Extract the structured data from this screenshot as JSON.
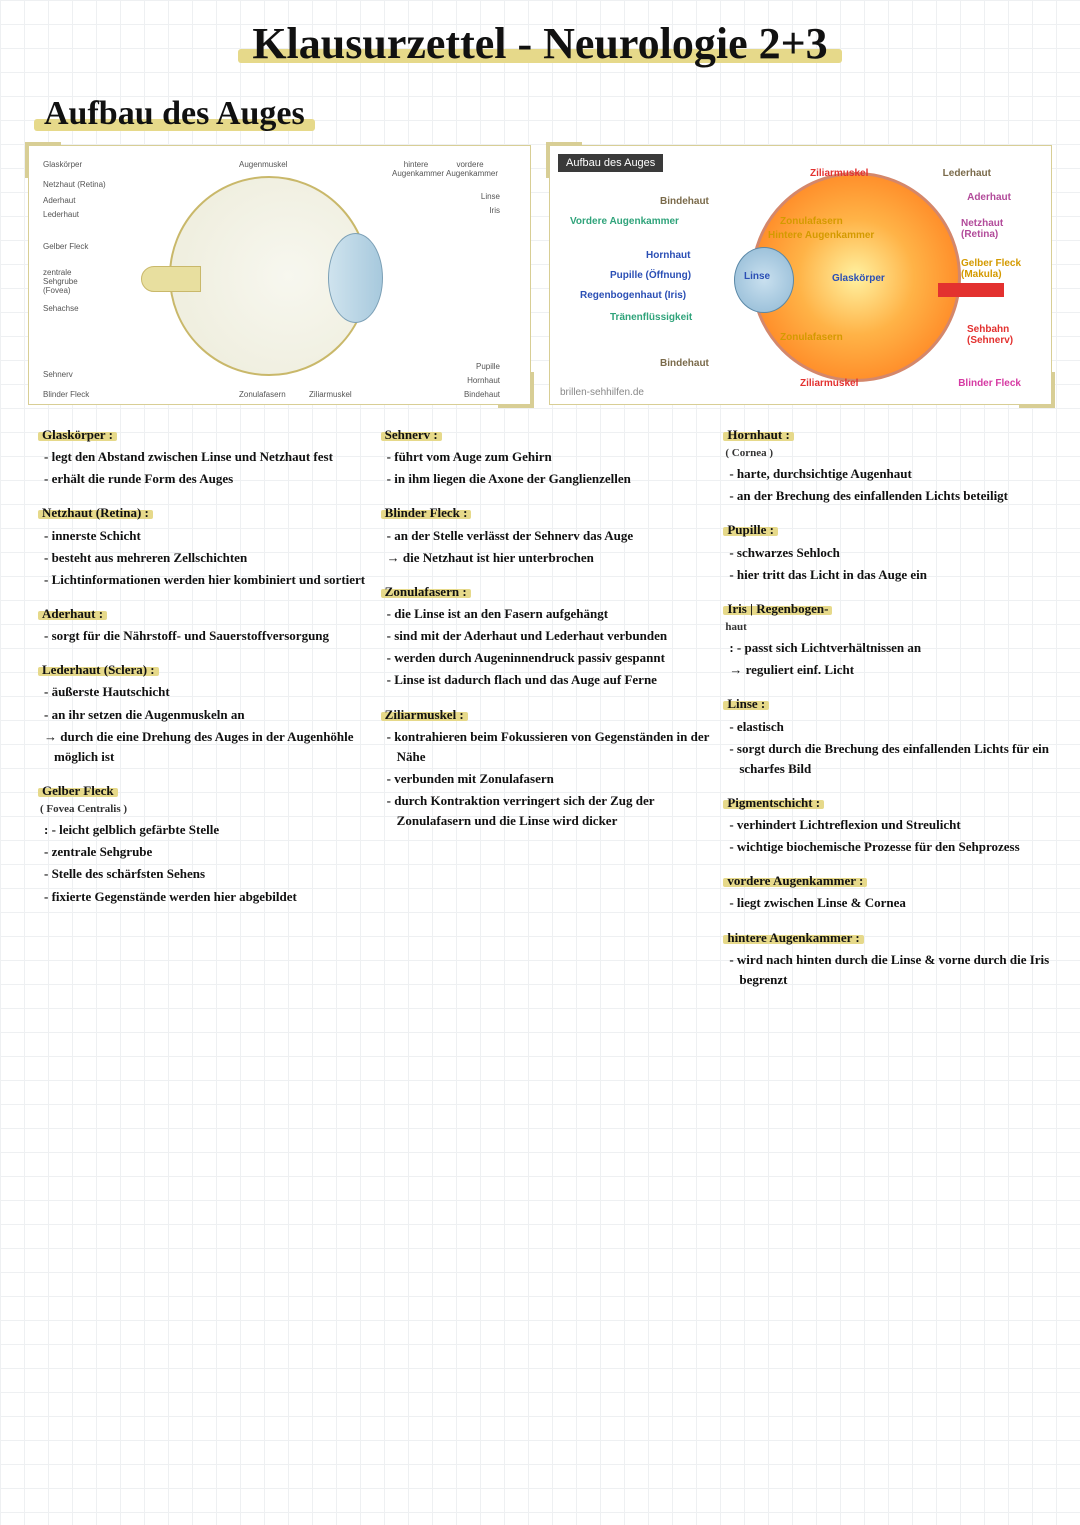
{
  "page": {
    "title": "Klausurzettel - Neurologie 2+3",
    "section": "Aufbau des Auges",
    "highlight_color": "#e6d98a",
    "grid_color": "#eef0f2",
    "background_color": "#ffffff"
  },
  "diagram_left": {
    "labels": {
      "glaskoerper": "Glaskörper",
      "netzhaut": "Netzhaut (Retina)",
      "aderhaut": "Aderhaut",
      "lederhaut": "Lederhaut",
      "gelber_fleck": "Gelber Fleck",
      "zentrale": "zentrale Sehgrube (Fovea)",
      "sehachse": "Sehachse",
      "sehnerv": "Sehnerv",
      "blinder_fleck": "Blinder Fleck",
      "zonulafasern": "Zonulafasern",
      "ziliarmuskel": "Ziliarmuskel",
      "augenmuskel": "Augenmuskel",
      "hintere_kammer": "hintere Augenkammer",
      "vordere_kammer": "vordere Augenkammer",
      "linse": "Linse",
      "iris": "Iris",
      "pupille": "Pupille",
      "hornhaut": "Hornhaut",
      "bindehaut": "Bindehaut"
    }
  },
  "diagram_right": {
    "header": "Aufbau des Auges",
    "source": "brillen-sehhilfen.de",
    "labels": {
      "ziliarmuskel": {
        "text": "Ziliarmuskel",
        "color": "#e3312f"
      },
      "lederhaut": {
        "text": "Lederhaut",
        "color": "#7a6a4a"
      },
      "aderhaut": {
        "text": "Aderhaut",
        "color": "#b24b9a"
      },
      "netzhaut": {
        "text": "Netzhaut (Retina)",
        "color": "#b24b9a"
      },
      "gelber_fleck": {
        "text": "Gelber Fleck (Makula)",
        "color": "#d49a00"
      },
      "sehbahn": {
        "text": "Sehbahn (Sehnerv)",
        "color": "#e3312f"
      },
      "blinder_fleck": {
        "text": "Blinder Fleck",
        "color": "#d63aa3"
      },
      "bindehaut": {
        "text": "Bindehaut",
        "color": "#7a6a4a"
      },
      "vordere_kammer": {
        "text": "Vordere Augenkammer",
        "color": "#2fa37a"
      },
      "hornhaut": {
        "text": "Hornhaut",
        "color": "#2b4fb5"
      },
      "pupille": {
        "text": "Pupille (Öffnung)",
        "color": "#2b4fb5"
      },
      "iris": {
        "text": "Regenbogenhaut (Iris)",
        "color": "#2b4fb5"
      },
      "traenen": {
        "text": "Tränenflüssigkeit",
        "color": "#2fa37a"
      },
      "zonulafasern": {
        "text": "Zonulafasern",
        "color": "#d49a00"
      },
      "hintere_kammer": {
        "text": "Hintere Augenkammer",
        "color": "#d49a00"
      },
      "linse": {
        "text": "Linse",
        "color": "#2b4fb5"
      },
      "glaskoerper": {
        "text": "Glaskörper",
        "color": "#2b4fb5"
      }
    }
  },
  "notes": {
    "col1": [
      {
        "term": "Glaskörper :",
        "lines": [
          "- legt den Abstand zwischen Linse und Netzhaut fest",
          "- erhält die runde Form des Auges"
        ]
      },
      {
        "term": "Netzhaut (Retina) :",
        "lines": [
          "- innerste Schicht",
          "- besteht aus mehreren Zellschichten",
          "- Lichtinformationen werden hier kombiniert und sortiert"
        ]
      },
      {
        "term": "Aderhaut :",
        "lines": [
          "- sorgt für die Nährstoff- und Sauerstoffversorgung"
        ]
      },
      {
        "term": "Lederhaut (Sclera) :",
        "lines": [
          "- äußerste Hautschicht",
          "- an ihr setzen die Augenmuskeln an",
          "→ durch die eine Drehung des Auges in der Augenhöhle möglich ist"
        ]
      },
      {
        "term": "Gelber Fleck",
        "sub": "( Fovea Centralis )",
        "lines": [
          ": - leicht gelblich gefärbte Stelle",
          "- zentrale Sehgrube",
          "- Stelle des schärfsten Sehens",
          "- fixierte Gegenstände werden hier abgebildet"
        ]
      }
    ],
    "col2": [
      {
        "term": "Sehnerv :",
        "lines": [
          "- führt vom Auge zum Gehirn",
          "- in ihm liegen die Axone der Ganglienzellen"
        ]
      },
      {
        "term": "Blinder Fleck :",
        "lines": [
          "- an der Stelle verlässt der Sehnerv das Auge",
          "→ die Netzhaut ist hier unterbrochen"
        ]
      },
      {
        "term": "Zonulafasern :",
        "lines": [
          "- die Linse ist an den Fasern aufgehängt",
          "- sind mit der Aderhaut und Lederhaut verbunden",
          "- werden durch Augeninnendruck passiv gespannt",
          "- Linse ist dadurch flach und das Auge auf Ferne"
        ]
      },
      {
        "term": "Ziliarmuskel :",
        "lines": [
          "- kontrahieren beim Fokussieren von Gegenständen in der Nähe",
          "- verbunden mit Zonulafasern",
          "- durch Kontraktion verringert sich der Zug der Zonulafasern und die Linse wird dicker"
        ]
      }
    ],
    "col3": [
      {
        "term": "Hornhaut :",
        "sub": "( Cornea )",
        "lines": [
          "- harte, durchsichtige Augenhaut",
          "- an der Brechung des einfallenden Lichts beteiligt"
        ]
      },
      {
        "term": "Pupille :",
        "lines": [
          "- schwarzes Sehloch",
          "- hier tritt das Licht in das Auge ein"
        ]
      },
      {
        "term": "Iris | Regenbogen-",
        "sub": "haut",
        "lines": [
          ": - passt sich Lichtverhältnissen an",
          "→ reguliert einf. Licht"
        ]
      },
      {
        "term": "Linse :",
        "lines": [
          "- elastisch",
          "- sorgt durch die Brechung des einfallenden Lichts für ein scharfes Bild"
        ]
      },
      {
        "term": "Pigmentschicht :",
        "lines": [
          "- verhindert Lichtreflexion und Streulicht",
          "- wichtige biochemische Prozesse für den Sehprozess"
        ]
      },
      {
        "term": "vordere Augenkammer :",
        "lines": [
          "- liegt zwischen Linse & Cornea"
        ]
      },
      {
        "term": "hintere Augenkammer :",
        "lines": [
          "- wird nach hinten durch die Linse & vorne durch die Iris begrenzt"
        ]
      }
    ]
  }
}
